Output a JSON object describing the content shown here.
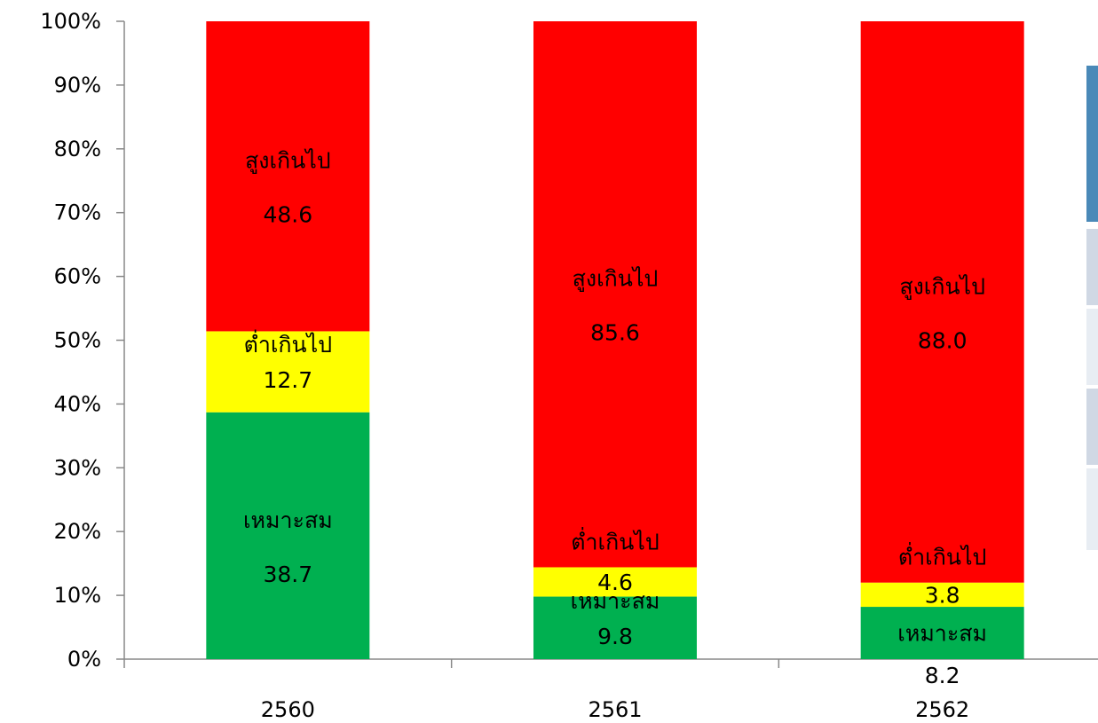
{
  "chart_data": {
    "type": "bar",
    "stacked": true,
    "percent": true,
    "categories": [
      "2560",
      "2561",
      "2562"
    ],
    "ylim": [
      0,
      100
    ],
    "y_ticks": [
      "0%",
      "10%",
      "20%",
      "30%",
      "40%",
      "50%",
      "60%",
      "70%",
      "80%",
      "90%",
      "100%"
    ],
    "grid": false,
    "series": [
      {
        "name": "เหมาะสม",
        "color": "#00b050",
        "values": [
          38.7,
          9.8,
          8.2
        ],
        "value_labels": [
          "38.7",
          "9.8",
          "8.2"
        ]
      },
      {
        "name": "ต่ำเกินไป",
        "color": "#ffff00",
        "values": [
          12.7,
          4.6,
          3.8
        ],
        "value_labels": [
          "12.7",
          "4.6",
          "3.8"
        ]
      },
      {
        "name": "สูงเกินไป",
        "color": "#ff0000",
        "values": [
          48.6,
          85.6,
          88.0
        ],
        "value_labels": [
          "48.6",
          "85.6",
          "88.0"
        ]
      }
    ]
  },
  "side_panel": {
    "colors": [
      "#4a89b8",
      "#d0d8e4",
      "#e8edf3",
      "#d0d8e4",
      "#e8edf3"
    ]
  }
}
